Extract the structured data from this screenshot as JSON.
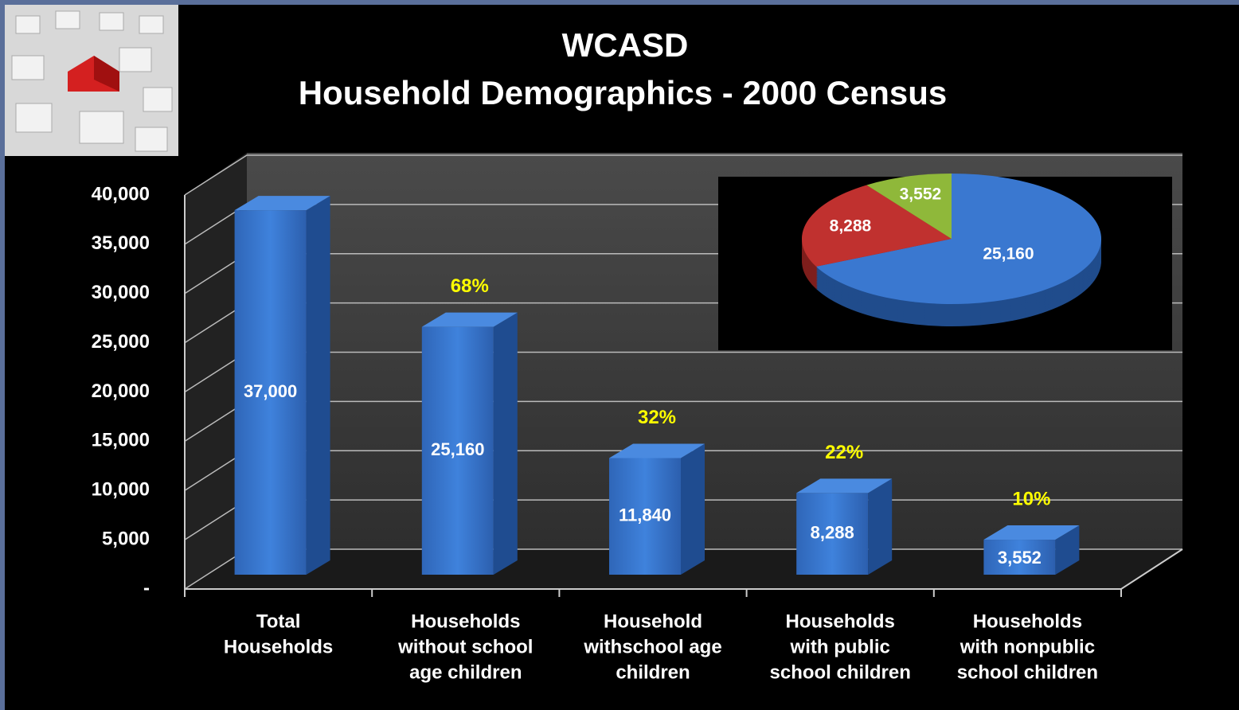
{
  "chart_data": [
    {
      "type": "bar",
      "title": "WCASD",
      "subtitle": "Household Demographics - 2000 Census",
      "categories": [
        [
          "Total",
          "Households"
        ],
        [
          "Households",
          "without school",
          "age children"
        ],
        [
          "Household",
          "withschool age",
          "children"
        ],
        [
          "Households",
          "with public",
          "school children"
        ],
        [
          "Households",
          "with nonpublic",
          "school children"
        ]
      ],
      "values": [
        37000,
        25160,
        11840,
        8288,
        3552
      ],
      "value_labels": [
        "37,000",
        "25,160",
        "11,840",
        "8,288",
        "3,552"
      ],
      "percent_labels": [
        null,
        "68%",
        "32%",
        "22%",
        "10%"
      ],
      "color": "#3a78d0",
      "ylim": [
        0,
        40000
      ],
      "yticks": [
        {
          "value": 0,
          "label": "-"
        },
        {
          "value": 5000,
          "label": "5,000"
        },
        {
          "value": 10000,
          "label": "10,000"
        },
        {
          "value": 15000,
          "label": "15,000"
        },
        {
          "value": 20000,
          "label": "20,000"
        },
        {
          "value": 25000,
          "label": "25,000"
        },
        {
          "value": 30000,
          "label": "30,000"
        },
        {
          "value": 35000,
          "label": "35,000"
        },
        {
          "value": 40000,
          "label": "40,000"
        }
      ],
      "grid": true
    },
    {
      "type": "pie",
      "values": [
        25160,
        8288,
        3552
      ],
      "value_labels": [
        "25,160",
        "8,288",
        "3,552"
      ],
      "colors": [
        "#3a78d0",
        "#c0312f",
        "#8fb83a"
      ]
    }
  ]
}
